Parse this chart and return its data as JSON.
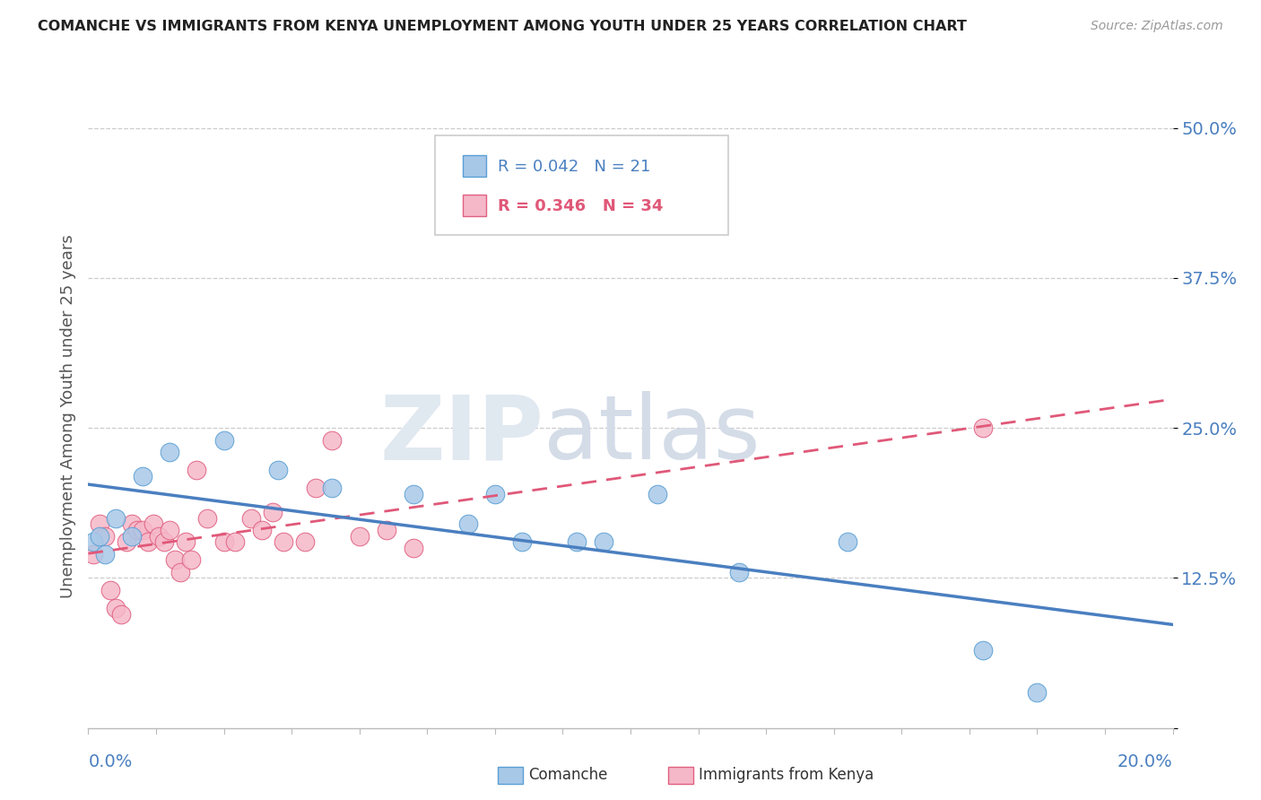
{
  "title": "COMANCHE VS IMMIGRANTS FROM KENYA UNEMPLOYMENT AMONG YOUTH UNDER 25 YEARS CORRELATION CHART",
  "source": "Source: ZipAtlas.com",
  "ylabel": "Unemployment Among Youth under 25 years",
  "yticks": [
    0.0,
    0.125,
    0.25,
    0.375,
    0.5
  ],
  "ytick_labels": [
    "",
    "12.5%",
    "25.0%",
    "37.5%",
    "50.0%"
  ],
  "xlim": [
    0.0,
    0.2
  ],
  "ylim": [
    0.0,
    0.52
  ],
  "legend_r1": "R = 0.042",
  "legend_n1": "N = 21",
  "legend_r2": "R = 0.346",
  "legend_n2": "N = 34",
  "color_comanche_fill": "#a8c8e8",
  "color_comanche_edge": "#5a9fd4",
  "color_kenya_fill": "#f5b8c8",
  "color_kenya_edge": "#e06080",
  "color_line_comanche": "#4a7fc0",
  "color_line_kenya": "#e05878",
  "comanche_x": [
    0.001,
    0.002,
    0.003,
    0.005,
    0.008,
    0.01,
    0.015,
    0.025,
    0.035,
    0.045,
    0.06,
    0.07,
    0.075,
    0.08,
    0.09,
    0.095,
    0.105,
    0.12,
    0.14,
    0.165,
    0.175
  ],
  "comanche_y": [
    0.155,
    0.16,
    0.145,
    0.175,
    0.16,
    0.21,
    0.23,
    0.24,
    0.215,
    0.2,
    0.195,
    0.17,
    0.195,
    0.155,
    0.155,
    0.155,
    0.195,
    0.13,
    0.155,
    0.065,
    0.03
  ],
  "kenya_x": [
    0.001,
    0.002,
    0.003,
    0.004,
    0.005,
    0.006,
    0.007,
    0.008,
    0.009,
    0.01,
    0.011,
    0.012,
    0.013,
    0.014,
    0.015,
    0.016,
    0.017,
    0.018,
    0.019,
    0.02,
    0.022,
    0.025,
    0.027,
    0.03,
    0.032,
    0.034,
    0.036,
    0.04,
    0.042,
    0.045,
    0.05,
    0.055,
    0.06,
    0.165
  ],
  "kenya_y": [
    0.145,
    0.17,
    0.16,
    0.115,
    0.1,
    0.095,
    0.155,
    0.17,
    0.165,
    0.165,
    0.155,
    0.17,
    0.16,
    0.155,
    0.165,
    0.14,
    0.13,
    0.155,
    0.14,
    0.215,
    0.175,
    0.155,
    0.155,
    0.175,
    0.165,
    0.18,
    0.155,
    0.155,
    0.2,
    0.24,
    0.16,
    0.165,
    0.15,
    0.25
  ]
}
